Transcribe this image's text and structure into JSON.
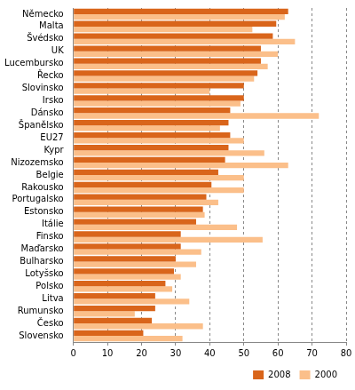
{
  "chart_data": {
    "type": "bar",
    "orientation": "horizontal",
    "categories": [
      "Německo",
      "Malta",
      "Švédsko",
      "UK",
      "Lucembursko",
      "Řecko",
      "Slovinsko",
      "Irsko",
      "Dánsko",
      "Španělsko",
      "EU27",
      "Kypr",
      "Nizozemsko",
      "Belgie",
      "Rakousko",
      "Portugalsko",
      "Estonsko",
      "Itálie",
      "Finsko",
      "Maďarsko",
      "Bulharsko",
      "Lotyšsko",
      "Polsko",
      "Litva",
      "Rumunsko",
      "Česko",
      "Slovensko"
    ],
    "series": [
      {
        "name": "2008",
        "color": "#d9651b",
        "values": [
          63,
          59.5,
          58.5,
          55,
          55,
          54,
          50,
          50,
          46,
          45.5,
          46,
          45.5,
          44.5,
          42.5,
          40.5,
          39,
          38,
          36,
          31.5,
          31.5,
          30,
          29.5,
          27,
          24,
          24,
          23,
          20.5
        ]
      },
      {
        "name": "2000",
        "color": "#fbbf8a",
        "values": [
          62,
          52.5,
          65,
          60,
          57,
          53,
          40,
          49,
          72,
          43,
          50,
          56,
          63,
          50,
          50,
          42.5,
          38.5,
          48,
          55.5,
          37.5,
          36,
          31.5,
          29,
          34,
          18,
          38,
          32
        ]
      }
    ],
    "xlim": [
      0,
      80
    ],
    "xticks": [
      0,
      10,
      20,
      30,
      40,
      50,
      60,
      70,
      80
    ],
    "grid": true,
    "legend": "lower right"
  }
}
